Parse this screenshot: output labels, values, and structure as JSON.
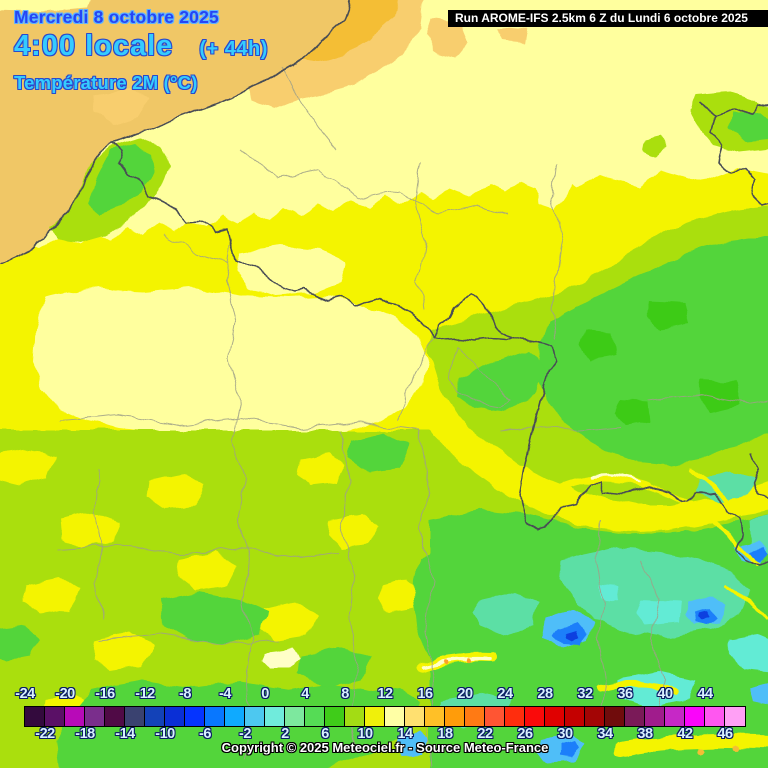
{
  "header": {
    "date": "Mercredi 8 octobre 2025",
    "time": "4:00 locale",
    "offset": "(+ 44h)",
    "parameter": "Température 2M (°C)"
  },
  "run_banner": {
    "text": "Run AROME-IFS 2.5km 6 Z du Lundi 6 octobre 2025"
  },
  "copyright": "Copyright © 2025 Meteociel.fr - Source Meteo-France",
  "colorbar": {
    "unit": "°C",
    "min": -24,
    "max": 48,
    "cell_step": 2,
    "top_labels": [
      "-24",
      "-20",
      "-16",
      "-12",
      "-8",
      "-4",
      "0",
      "4",
      "8",
      "12",
      "16",
      "20",
      "24",
      "28",
      "32",
      "36",
      "40",
      "44"
    ],
    "bottom_labels": [
      "-22",
      "-18",
      "-14",
      "-10",
      "-6",
      "-2",
      "2",
      "6",
      "10",
      "14",
      "18",
      "22",
      "26",
      "30",
      "34",
      "38",
      "42",
      "46"
    ],
    "cells": [
      {
        "from": -24,
        "to": -22,
        "color": "#330A3D"
      },
      {
        "from": -22,
        "to": -20,
        "color": "#5A1066"
      },
      {
        "from": -20,
        "to": -18,
        "color": "#B80AB8"
      },
      {
        "from": -18,
        "to": -16,
        "color": "#7A2E8C"
      },
      {
        "from": -16,
        "to": -14,
        "color": "#500A46"
      },
      {
        "from": -14,
        "to": -12,
        "color": "#3A4270"
      },
      {
        "from": -12,
        "to": -10,
        "color": "#1342B8"
      },
      {
        "from": -10,
        "to": -8,
        "color": "#0A2FD6"
      },
      {
        "from": -8,
        "to": -6,
        "color": "#0534FF"
      },
      {
        "from": -6,
        "to": -4,
        "color": "#0877FF"
      },
      {
        "from": -4,
        "to": -2,
        "color": "#0FAAFF"
      },
      {
        "from": -2,
        "to": 0,
        "color": "#4DC8F0"
      },
      {
        "from": 0,
        "to": 2,
        "color": "#70EBDC"
      },
      {
        "from": 2,
        "to": 4,
        "color": "#7DE89E"
      },
      {
        "from": 4,
        "to": 6,
        "color": "#55DC55"
      },
      {
        "from": 6,
        "to": 8,
        "color": "#3FCC19"
      },
      {
        "from": 8,
        "to": 10,
        "color": "#A3DC14"
      },
      {
        "from": 10,
        "to": 12,
        "color": "#F0F00A"
      },
      {
        "from": 12,
        "to": 14,
        "color": "#FFFFA5"
      },
      {
        "from": 14,
        "to": 16,
        "color": "#FFE070"
      },
      {
        "from": 16,
        "to": 18,
        "color": "#FFC027"
      },
      {
        "from": 18,
        "to": 20,
        "color": "#FF9C0A"
      },
      {
        "from": 20,
        "to": 22,
        "color": "#FF7A14"
      },
      {
        "from": 22,
        "to": 24,
        "color": "#FF5533"
      },
      {
        "from": 24,
        "to": 26,
        "color": "#FF2D0D"
      },
      {
        "from": 26,
        "to": 28,
        "color": "#FA0A0A"
      },
      {
        "from": 28,
        "to": 30,
        "color": "#E00000"
      },
      {
        "from": 30,
        "to": 32,
        "color": "#C40000"
      },
      {
        "from": 32,
        "to": 34,
        "color": "#A30505"
      },
      {
        "from": 34,
        "to": 36,
        "color": "#700C0C"
      },
      {
        "from": 36,
        "to": 38,
        "color": "#7A1A58"
      },
      {
        "from": 38,
        "to": 40,
        "color": "#A01C8C"
      },
      {
        "from": 40,
        "to": 42,
        "color": "#C628C6"
      },
      {
        "from": 42,
        "to": 44,
        "color": "#FA05FA"
      },
      {
        "from": 44,
        "to": 46,
        "color": "#FF57F0"
      },
      {
        "from": 46,
        "to": 48,
        "color": "#FFA0F5"
      }
    ]
  },
  "map": {
    "type": "temperature-raster",
    "palette": {
      "sea": "#F0C766",
      "tan": "#F8CE6E",
      "gold": "#F4BE34",
      "pale": "#FFFF9E",
      "yellow": "#F4F403",
      "ygreen": "#AADF0D",
      "green": "#52D53B",
      "dgreen": "#3ECB17",
      "teal": "#5BDFA5",
      "cyan": "#62EBD5",
      "lblue": "#4FBEF8",
      "blue": "#1E7FFA",
      "dblue": "#0A3FE0",
      "cream": "#FFFFC8",
      "orange": "#FFA028",
      "border": "#4A4E55",
      "dept": "#9FA188"
    }
  },
  "theme": {
    "date_fill": "#2545F5",
    "date_outline": "#5FB4FF",
    "cyan_fill": "#35CCFF",
    "cyan_outline": "#2B49CC",
    "banner_bg": "#000000",
    "banner_fg": "#FFFFFF",
    "label_fill": "#D9F1FF",
    "label_outline": "#0A1C66"
  }
}
